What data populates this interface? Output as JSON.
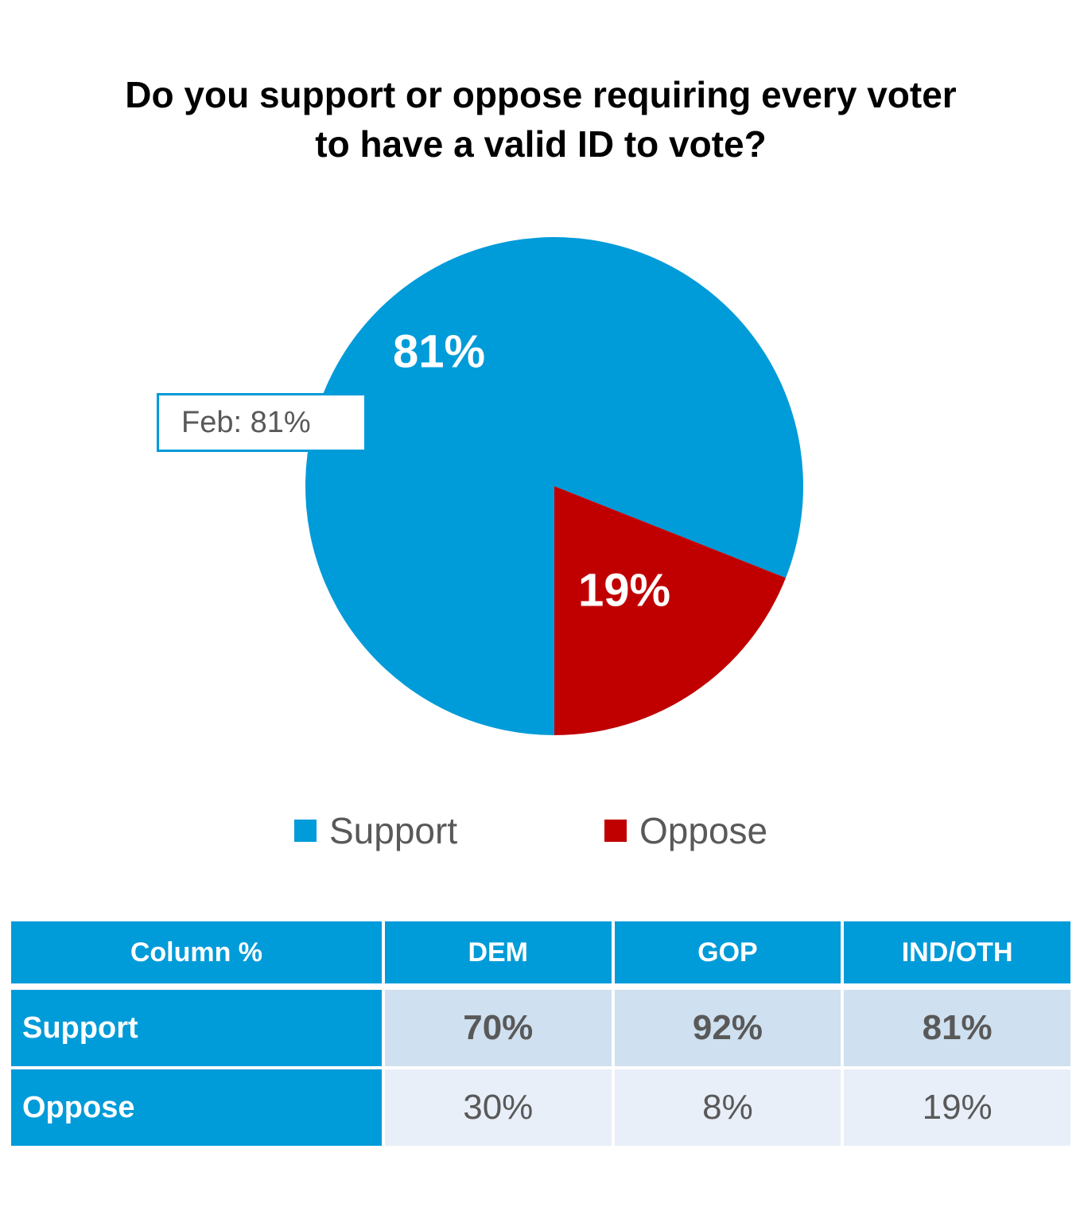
{
  "title": {
    "line1": "Do you support or oppose requiring every voter",
    "line2": "to have a valid ID to vote?"
  },
  "chart_data": {
    "type": "pie",
    "title": "Do you support or oppose requiring every voter to have a valid ID to vote?",
    "slices": [
      {
        "name": "Support",
        "value": 81,
        "label": "81%",
        "color": "#009BD9"
      },
      {
        "name": "Oppose",
        "value": 19,
        "label": "19%",
        "color": "#C00000"
      }
    ],
    "annotation": "Feb: 81%",
    "legend": [
      {
        "name": "Support",
        "color": "#009BD9"
      },
      {
        "name": "Oppose",
        "color": "#C00000"
      }
    ],
    "legend_position": "bottom"
  },
  "table": {
    "header": [
      "Column %",
      "DEM",
      "GOP",
      "IND/OTH"
    ],
    "rows": [
      {
        "label": "Support",
        "values": [
          "70%",
          "92%",
          "81%"
        ]
      },
      {
        "label": "Oppose",
        "values": [
          "30%",
          "8%",
          "19%"
        ]
      }
    ]
  },
  "colors": {
    "support": "#009BD9",
    "oppose": "#C00000",
    "text_gray": "#595959"
  }
}
